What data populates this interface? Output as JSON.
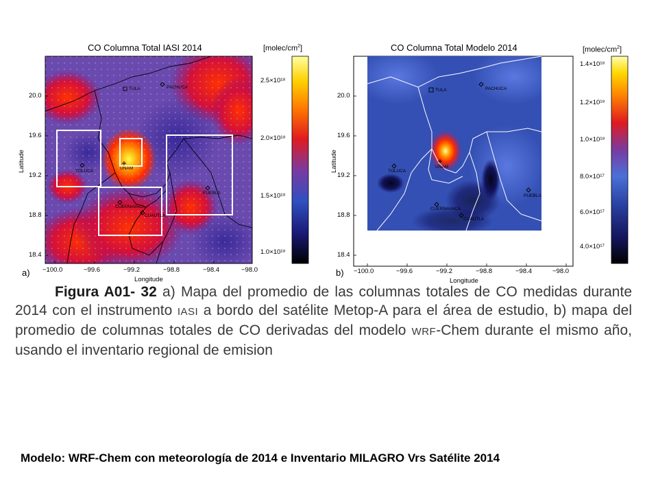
{
  "panel_a": {
    "title": "CO Columna Total IASI 2014",
    "units": "[molec/cm",
    "units_sup": "2",
    "units_close": "]",
    "panel_label": "a)",
    "y_ticks": [
      "20.0",
      "19.6",
      "19.2",
      "18.8",
      "18.4"
    ],
    "x_ticks": [
      "−100.0",
      "−99.6",
      "−99.2",
      "−98.8",
      "−98.4",
      "−98.0"
    ],
    "colorbar_ticks": [
      "2.5×10¹⁸",
      "2.0×10¹⁸",
      "1.5×10¹⁸",
      "1.0×10¹⁸"
    ],
    "cities": [
      "TULA",
      "PACHUCA",
      "TOLUCA",
      "UNAM",
      "PUEBLA",
      "CUERNAVACA",
      "CUAUTLA"
    ]
  },
  "panel_b": {
    "title": "CO Columna Total Modelo 2014",
    "units": "[molec/cm",
    "units_sup": "2",
    "units_close": "]",
    "panel_label": "b)",
    "y_ticks": [
      "20.0",
      "19.6",
      "19.2",
      "18.8",
      "18.4"
    ],
    "x_ticks": [
      "−100.0",
      "−99.6",
      "−99.2",
      "−98.8",
      "−98.4",
      "−98.0"
    ],
    "colorbar_ticks": [
      "1.4×10¹⁸",
      "1.2×10¹⁸",
      "1.0×10¹⁸",
      "8.0×10¹⁷",
      "6.0×10¹⁷",
      "4.0×10¹⁷"
    ],
    "cities": [
      "TULA",
      "PACHUCA",
      "TOLUCA",
      "UNAM",
      "PUEBLA",
      "CUERNAVACA",
      "CUAUTLA"
    ]
  },
  "axis": {
    "ylabel": "Latitude",
    "xlabel": "Longitude"
  },
  "caption": {
    "fig_label": "Figura A01- 32",
    "part1": " a) Mapa del promedio de las columnas totales de CO medidas durante 2014 con el instrumento ",
    "iasi": "IASI",
    "part2": " a bordo del satélite Metop-A para el área de estudio, b) mapa del promedio de columnas totales de CO derivadas del modelo ",
    "wrf": "WRF",
    "part3": "-Chem durante el mismo año, usando el inventario regional de emision"
  },
  "footer": "Modelo: WRF-Chem con meteorología de 2014 e Inventario MILAGRO Vrs Satélite 2014"
}
